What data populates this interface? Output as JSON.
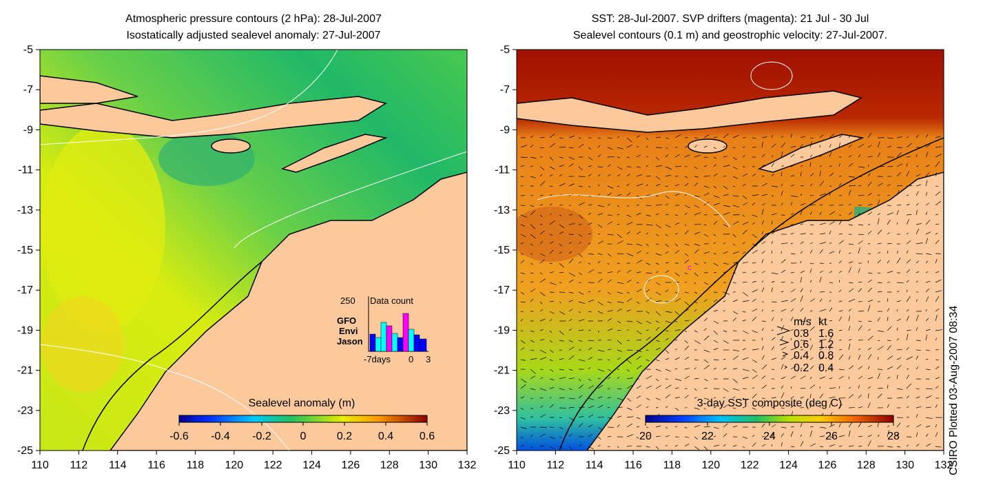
{
  "colors": {
    "land": "#fbc99b",
    "coast": "#000000",
    "contour": "#ffffff",
    "drifter": "#ff00ff"
  },
  "panels": [
    {
      "id": "sla",
      "title_line1": "Atmospheric pressure contours (2 hPa): 28-Jul-2007",
      "title_line2": "Isostatically adjusted sealevel anomaly: 27-Jul-2007",
      "colorbar_title": "Sealevel anomaly (m)",
      "colorbar_ticks": [
        "-0.6",
        "-0.4",
        "-0.2",
        "0",
        "0.2",
        "0.4",
        "0.6"
      ]
    },
    {
      "id": "sst",
      "title_line1": "SST: 28-Jul-2007. SVP drifters (magenta): 21 Jul - 30 Jul",
      "title_line2": "Sealevel contours (0.1 m) and geostrophic velocity: 27-Jul-2007.",
      "colorbar_title": "3-day SST composite (deg C)",
      "colorbar_ticks": [
        "20",
        "22",
        "24",
        "26",
        "28"
      ]
    }
  ],
  "inset": {
    "title": "Data count",
    "ymax_label": "250",
    "missions": [
      "GFO",
      "Envi",
      "Jason"
    ],
    "mission_colors": [
      "#ff00ff",
      "#00ffff",
      "#0000ff"
    ],
    "x_ticks": [
      "-7days",
      "0",
      "3"
    ]
  },
  "velocity_legend": {
    "header_ms": "m/s",
    "header_kt": "kt",
    "rows": [
      {
        "ms": "0.8",
        "kt": "1.6"
      },
      {
        "ms": "0.6",
        "kt": "1.2"
      },
      {
        "ms": "0.4",
        "kt": "0.8"
      },
      {
        "ms": "0.2",
        "kt": "0.4"
      }
    ]
  },
  "credit": "CSIRO Plotted 03-Aug-2007 08:34",
  "chart_data": [
    {
      "type": "heatmap",
      "title": "Atmospheric pressure contours (2 hPa): 28-Jul-2007 / Isostatically adjusted sealevel anomaly: 27-Jul-2007",
      "x_ticks": [
        110,
        112,
        114,
        116,
        118,
        120,
        122,
        124,
        126,
        128,
        130,
        132
      ],
      "y_ticks": [
        -5,
        -7,
        -9,
        -11,
        -13,
        -15,
        -17,
        -19,
        -21,
        -23,
        -25
      ],
      "xlim": [
        110,
        132
      ],
      "ylim": [
        -25,
        -5
      ],
      "colorbar": {
        "label": "Sealevel anomaly (m)",
        "range": [
          -0.6,
          0.6
        ]
      }
    },
    {
      "type": "heatmap",
      "title": "SST: 28-Jul-2007. SVP drifters (magenta): 21 Jul - 30 Jul / Sealevel contours (0.1 m) and geostrophic velocity: 27-Jul-2007.",
      "x_ticks": [
        110,
        112,
        114,
        116,
        118,
        120,
        122,
        124,
        126,
        128,
        130,
        132
      ],
      "y_ticks": [
        -5,
        -7,
        -9,
        -11,
        -13,
        -15,
        -17,
        -19,
        -21,
        -23,
        -25
      ],
      "xlim": [
        110,
        132
      ],
      "ylim": [
        -25,
        -5
      ],
      "colorbar": {
        "label": "3-day SST composite (deg C)",
        "range": [
          20,
          28
        ]
      }
    }
  ]
}
